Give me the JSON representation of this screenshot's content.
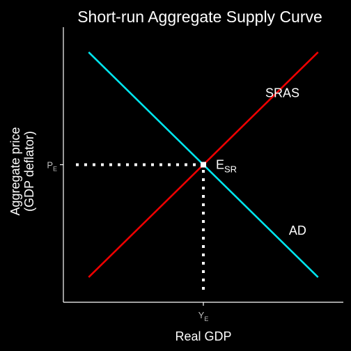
{
  "chart_data": {
    "type": "line",
    "title": "Short-run Aggregate Supply Curve",
    "xlabel": "Real GDP",
    "ylabel_line1": "Aggregate price",
    "ylabel_line2": "(GDP deflator)",
    "xlim": [
      0,
      10
    ],
    "ylim": [
      0,
      10
    ],
    "x_ticks": [
      {
        "value": 5,
        "base": "Y",
        "sub": "E"
      }
    ],
    "y_ticks": [
      {
        "value": 5,
        "base": "P",
        "sub": "E"
      }
    ],
    "series": [
      {
        "name": "SRAS",
        "color": "#ee0000",
        "points": [
          [
            0.5,
            0.5
          ],
          [
            9.5,
            9.5
          ]
        ],
        "label_position": [
          8.1,
          7.7
        ]
      },
      {
        "name": "AD",
        "color": "#00e5ee",
        "points": [
          [
            0.5,
            9.5
          ],
          [
            9.5,
            0.5
          ]
        ],
        "label_position": [
          8.7,
          2.2
        ]
      }
    ],
    "equilibrium": {
      "x": 5,
      "y": 5,
      "label_base": "E",
      "label_sub": "SR",
      "guide_color": "#ffffff",
      "guide_style": "dotted"
    },
    "colors": {
      "background": "#000000",
      "axis": "#ffffff",
      "text": "#ffffff",
      "tick_text": "#bfbfbf"
    },
    "grid": false,
    "legend": "none"
  }
}
